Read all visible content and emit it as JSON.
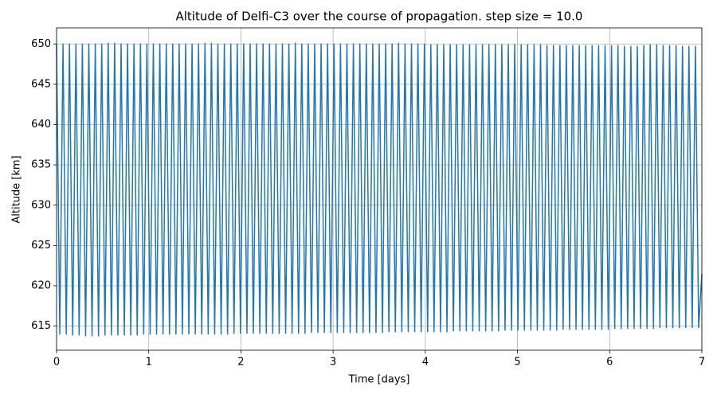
{
  "chart_data": {
    "type": "line",
    "title": "Altitude of Delfi-C3 over the course of propagation. step size = 10.0",
    "xlabel": "Time [days]",
    "ylabel": "Altitude [km]",
    "xlim": [
      0,
      7
    ],
    "ylim": [
      612,
      652
    ],
    "xticks": [
      0,
      1,
      2,
      3,
      4,
      5,
      6,
      7
    ],
    "yticks": [
      615,
      620,
      625,
      630,
      635,
      640,
      645,
      650
    ],
    "grid": true,
    "x": [
      0,
      0.035,
      0.07,
      0.105,
      0.14,
      0.175,
      0.21,
      0.245,
      0.28,
      0.315,
      0.35,
      0.385,
      0.42,
      0.455,
      0.49,
      0.525,
      0.56,
      0.595,
      0.63,
      0.665,
      0.7,
      0.735,
      0.77,
      0.805,
      0.84,
      0.875,
      0.91,
      0.945,
      0.98,
      1.015,
      1.05,
      1.085,
      1.12,
      1.155,
      1.19,
      1.225,
      1.26,
      1.295,
      1.33,
      1.365,
      1.4,
      1.435,
      1.47,
      1.505,
      1.54,
      1.575,
      1.61,
      1.645,
      1.68,
      1.715,
      1.75,
      1.785,
      1.82,
      1.855,
      1.89,
      1.925,
      1.96,
      1.995,
      2.03,
      2.065,
      2.1,
      2.135,
      2.17,
      2.205,
      2.24,
      2.275,
      2.31,
      2.345,
      2.38,
      2.415,
      2.45,
      2.485,
      2.52,
      2.555,
      2.59,
      2.625,
      2.66,
      2.695,
      2.73,
      2.765,
      2.8,
      2.835,
      2.87,
      2.905,
      2.94,
      2.975,
      3.01,
      3.045,
      3.08,
      3.115,
      3.15,
      3.185,
      3.22,
      3.255,
      3.29,
      3.325,
      3.36,
      3.395,
      3.43,
      3.465,
      3.5,
      3.535,
      3.57,
      3.605,
      3.64,
      3.675,
      3.71,
      3.745,
      3.78,
      3.815,
      3.85,
      3.885,
      3.92,
      3.955,
      3.99,
      4.025,
      4.06,
      4.095,
      4.13,
      4.165,
      4.2,
      4.235,
      4.27,
      4.305,
      4.34,
      4.375,
      4.41,
      4.445,
      4.48,
      4.515,
      4.55,
      4.585,
      4.62,
      4.655,
      4.69,
      4.725,
      4.76,
      4.795,
      4.83,
      4.865,
      4.9,
      4.935,
      4.97,
      5.005,
      5.04,
      5.075,
      5.11,
      5.145,
      5.18,
      5.215,
      5.25,
      5.285,
      5.32,
      5.355,
      5.39,
      5.425,
      5.46,
      5.495,
      5.53,
      5.565,
      5.6,
      5.635,
      5.67,
      5.705,
      5.74,
      5.775,
      5.81,
      5.845,
      5.88,
      5.915,
      5.95,
      5.985,
      6.02,
      6.055,
      6.09,
      6.125,
      6.16,
      6.195,
      6.23,
      6.265,
      6.3,
      6.335,
      6.37,
      6.405,
      6.44,
      6.475,
      6.51,
      6.545,
      6.58,
      6.615,
      6.65,
      6.685,
      6.72,
      6.755,
      6.79,
      6.825,
      6.86,
      6.895,
      6.93,
      6.965,
      7
    ],
    "series": [
      {
        "color": "#1f77b4",
        "values": [
          650,
          614,
          650,
          614,
          650,
          613.9,
          650,
          613.9,
          650,
          613.8,
          650,
          613.8,
          650,
          613.8,
          650,
          613.9,
          650.1,
          613.9,
          650.1,
          613.9,
          650,
          613.9,
          650,
          613.9,
          650,
          613.9,
          650,
          614,
          650,
          614,
          650,
          614,
          650,
          614,
          650,
          614,
          650,
          614,
          650,
          614,
          650,
          614,
          650,
          614,
          650,
          614,
          650.1,
          614,
          650.1,
          614,
          650,
          614,
          650,
          614,
          650,
          614.1,
          650,
          614.1,
          650,
          614.1,
          650,
          614.1,
          650,
          614.1,
          650,
          614.1,
          650,
          614.1,
          650,
          614.1,
          650,
          614.1,
          650,
          614.1,
          650.1,
          614.1,
          650,
          614.1,
          650,
          614.2,
          650,
          614.2,
          650,
          614.2,
          650,
          614.2,
          650,
          614.2,
          650,
          614.2,
          650,
          614.2,
          650,
          614.2,
          650,
          614.2,
          650,
          614.2,
          650,
          614.2,
          650,
          614.2,
          650,
          614.3,
          650,
          614.3,
          650.1,
          614.3,
          650,
          614.3,
          650,
          614.3,
          650,
          614.3,
          650,
          614.3,
          649.9,
          614.3,
          649.9,
          614.3,
          649.9,
          614.3,
          649.9,
          614.4,
          649.9,
          614.4,
          649.9,
          614.4,
          649.9,
          614.4,
          649.9,
          614.4,
          649.9,
          614.4,
          649.9,
          614.4,
          649.9,
          614.4,
          649.9,
          614.5,
          649.9,
          614.5,
          649.9,
          614.5,
          649.9,
          614.5,
          649.9,
          614.5,
          649.9,
          614.5,
          649.9,
          614.5,
          649.8,
          614.5,
          649.8,
          614.5,
          649.8,
          614.6,
          649.8,
          614.6,
          649.8,
          614.6,
          649.8,
          614.6,
          649.8,
          614.6,
          649.8,
          614.6,
          649.8,
          614.6,
          649.8,
          614.6,
          649.8,
          614.7,
          649.8,
          614.7,
          649.7,
          614.7,
          649.7,
          614.7,
          649.7,
          614.7,
          649.8,
          614.7,
          649.9,
          614.7,
          649.9,
          614.8,
          649.8,
          614.8,
          649.8,
          614.8,
          649.8,
          614.8,
          649.7,
          614.8,
          649.7,
          614.8,
          649.7,
          614.8,
          621.5
        ]
      }
    ]
  }
}
